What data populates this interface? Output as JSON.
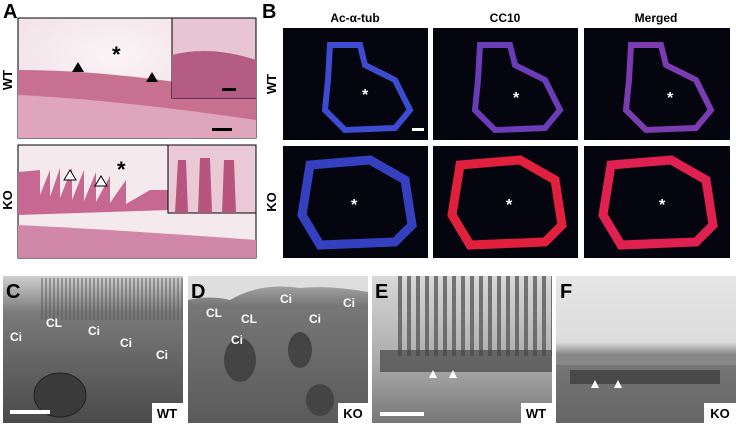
{
  "panels": [
    {
      "letter": "A",
      "rows": [
        "WT",
        "KO"
      ],
      "markers": [
        "*",
        "*"
      ]
    },
    {
      "letter": "B",
      "columns": [
        "Ac-α-tub",
        "CC10",
        "Merged"
      ],
      "rows": [
        "WT",
        "KO"
      ],
      "markers": [
        "*",
        "*",
        "*",
        "*",
        "*",
        "*"
      ]
    },
    {
      "letter": "C",
      "labels": [
        "Ci",
        "CL",
        "Ci",
        "Ci",
        "Ci"
      ],
      "genotype": "WT"
    },
    {
      "letter": "D",
      "labels": [
        "CL",
        "CL",
        "Ci",
        "Ci",
        "Ci",
        "Ci"
      ],
      "genotype": "KO"
    },
    {
      "letter": "E",
      "genotype": "WT"
    },
    {
      "letter": "F",
      "genotype": "KO"
    }
  ]
}
